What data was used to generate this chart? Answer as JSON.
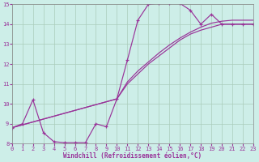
{
  "xlabel": "Windchill (Refroidissement éolien,°C)",
  "bg_color": "#cdeee8",
  "line_color": "#993399",
  "grid_color": "#aaccbb",
  "xlim": [
    0,
    23
  ],
  "ylim": [
    8,
    15
  ],
  "xticks": [
    0,
    1,
    2,
    3,
    4,
    5,
    6,
    7,
    8,
    9,
    10,
    11,
    12,
    13,
    14,
    15,
    16,
    17,
    18,
    19,
    20,
    21,
    22,
    23
  ],
  "yticks": [
    8,
    9,
    10,
    11,
    12,
    13,
    14,
    15
  ],
  "curve_x": [
    0,
    1,
    2,
    3,
    4,
    5,
    6,
    7,
    8,
    9,
    10,
    11,
    12,
    13,
    14,
    15,
    16,
    17,
    18,
    19,
    20,
    21,
    22,
    23
  ],
  "curve_y": [
    8.8,
    9.0,
    10.2,
    8.55,
    8.1,
    8.05,
    8.05,
    8.05,
    9.0,
    8.85,
    10.25,
    12.2,
    14.2,
    15.0,
    15.05,
    15.05,
    15.05,
    14.7,
    14.0,
    14.5,
    14.0,
    14.0,
    14.0,
    14.0
  ],
  "line2_x": [
    0,
    10,
    11,
    12,
    13,
    14,
    15,
    16,
    17,
    18,
    19,
    20,
    21,
    22,
    23
  ],
  "line2_y": [
    8.8,
    10.25,
    11.0,
    11.5,
    12.0,
    12.4,
    12.8,
    13.2,
    13.5,
    13.7,
    13.85,
    14.0,
    14.0,
    14.0,
    14.0
  ],
  "line3_x": [
    0,
    10,
    11,
    12,
    13,
    14,
    15,
    16,
    17,
    18,
    19,
    20,
    21,
    22,
    23
  ],
  "line3_y": [
    8.8,
    10.25,
    11.1,
    11.65,
    12.1,
    12.55,
    12.95,
    13.3,
    13.6,
    13.85,
    14.05,
    14.15,
    14.2,
    14.2,
    14.2
  ]
}
